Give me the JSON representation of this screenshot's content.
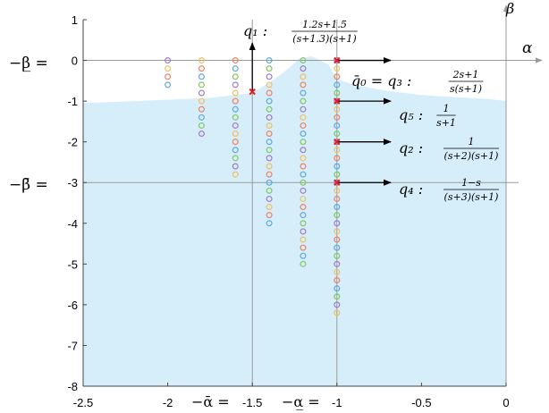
{
  "chart_data": {
    "type": "scatter",
    "xlim": [
      -2.5,
      0
    ],
    "ylim": [
      -8,
      1
    ],
    "grid": false,
    "x_ticks": [
      {
        "value": -2.5,
        "label": "-2.5"
      },
      {
        "value": -2,
        "label": "-2"
      },
      {
        "value": -1.5,
        "label": "-1.5"
      },
      {
        "value": -1,
        "label": "-1"
      },
      {
        "value": -0.5,
        "label": "-0.5"
      },
      {
        "value": 0,
        "label": "0"
      }
    ],
    "y_ticks": [
      {
        "value": 1,
        "label": "1"
      },
      {
        "value": 0,
        "label": "0"
      },
      {
        "value": -1,
        "label": "-1"
      },
      {
        "value": -2,
        "label": "-2"
      },
      {
        "value": -3,
        "label": "-3"
      },
      {
        "value": -4,
        "label": "-4"
      },
      {
        "value": -5,
        "label": "-5"
      },
      {
        "value": -6,
        "label": "-6"
      },
      {
        "value": -7,
        "label": "-7"
      },
      {
        "value": -8,
        "label": "-8"
      }
    ],
    "axis_names": {
      "horizontal": "α",
      "vertical": "β"
    },
    "region_boundary": [
      [
        -2.5,
        -1.05
      ],
      [
        -2.2,
        -1.0
      ],
      [
        -1.9,
        -0.95
      ],
      [
        -1.75,
        -0.92
      ],
      [
        -1.6,
        -0.85
      ],
      [
        -1.5,
        -0.8
      ],
      [
        -1.4,
        -0.55
      ],
      [
        -1.3,
        -0.25
      ],
      [
        -1.22,
        0.05
      ],
      [
        -1.15,
        0.1
      ],
      [
        -1.05,
        -0.1
      ],
      [
        -1.0,
        -0.45
      ],
      [
        -0.9,
        -0.6
      ],
      [
        -0.7,
        -0.75
      ],
      [
        -0.5,
        -0.85
      ],
      [
        -0.3,
        -0.9
      ],
      [
        -0.1,
        -0.95
      ],
      [
        0,
        -1.0
      ]
    ],
    "region_color": "#d6eefa",
    "root_columns": [
      {
        "x": -2.0,
        "y_from": 0,
        "y_to": -0.6
      },
      {
        "x": -1.8,
        "y_from": 0,
        "y_to": -1.8
      },
      {
        "x": -1.6,
        "y_from": 0,
        "y_to": -2.8
      },
      {
        "x": -1.4,
        "y_from": 0,
        "y_to": -4.0
      },
      {
        "x": -1.2,
        "y_from": 0,
        "y_to": -5.0
      },
      {
        "x": -1.0,
        "y_from": 0,
        "y_to": -6.2
      }
    ],
    "root_step": 0.2,
    "root_colors": [
      "#a07ac8",
      "#f0c060",
      "#f08060",
      "#60a8e0",
      "#80c860"
    ],
    "points": [
      {
        "name": "q1",
        "x": -1.5,
        "y": -0.77
      },
      {
        "name": "q3",
        "x": -1.0,
        "y": 0
      },
      {
        "name": "q5",
        "x": -1.0,
        "y": -1.0
      },
      {
        "name": "q2",
        "x": -1.0,
        "y": -2.0
      },
      {
        "name": "q4",
        "x": -1.0,
        "y": -3.0
      }
    ],
    "reference_lines": {
      "alpha": [
        {
          "value": -1.5,
          "label": "−ᾱ ="
        },
        {
          "value": -1.0,
          "label": "−α̲ ="
        }
      ],
      "beta": [
        {
          "value": 0,
          "label": "−β̲ ="
        },
        {
          "value": -3,
          "label": "−β̄ ="
        }
      ]
    },
    "annotations": [
      {
        "id": "q1",
        "name": "q₁ :",
        "numerator": "1.2s+1.5",
        "denominator": "(s+1.3)(s+1)"
      },
      {
        "id": "q3",
        "name": "q̄₀ = q₃ :",
        "numerator": "2s+1",
        "denominator": "s(s+1)"
      },
      {
        "id": "q5",
        "name": "q₅ :",
        "numerator": "1",
        "denominator": "s+1"
      },
      {
        "id": "q2",
        "name": "q₂ :",
        "numerator": "1",
        "denominator": "(s+2)(s+1)"
      },
      {
        "id": "q4",
        "name": "q₄ :",
        "numerator": "1−s",
        "denominator": "(s+3)(s+1)"
      }
    ],
    "marker_color": "#e02020"
  }
}
